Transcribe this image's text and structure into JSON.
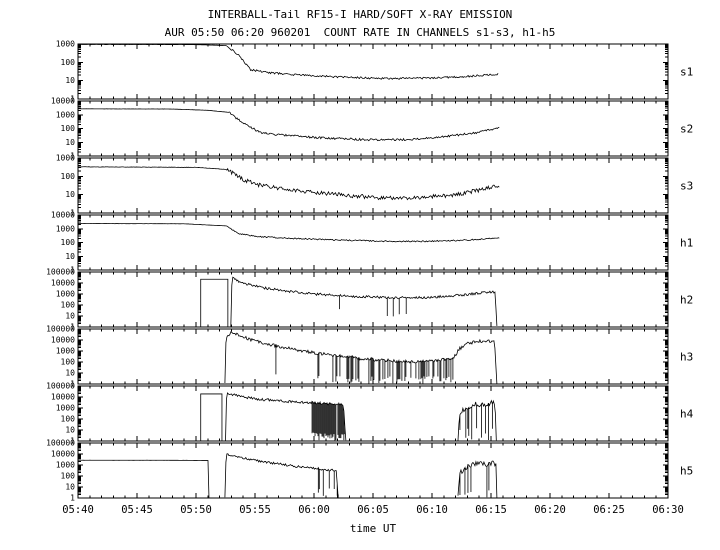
{
  "colors": {
    "trace": "#000000",
    "frame": "#000000",
    "background": "#ffffff"
  },
  "chart_data": {
    "type": "line",
    "title": "INTERBALL-Tail RF15-I HARD/SOFT X-RAY EMISSION",
    "subtitle": "AUR 05:50 06:20 960201  COUNT RATE IN CHANNELS s1-s3, h1-h5",
    "xlabel": "time UT",
    "y_scale": "log10",
    "grid": false,
    "x_axis": {
      "t_min": 340,
      "t_max": 390,
      "minor_step_min": 1,
      "ticks": [
        {
          "t": 340,
          "label": "05:40"
        },
        {
          "t": 345,
          "label": "05:45"
        },
        {
          "t": 350,
          "label": "05:50"
        },
        {
          "t": 355,
          "label": "05:55"
        },
        {
          "t": 360,
          "label": "06:00"
        },
        {
          "t": 365,
          "label": "06:05"
        },
        {
          "t": 370,
          "label": "06:10"
        },
        {
          "t": 375,
          "label": "06:15"
        },
        {
          "t": 380,
          "label": "06:20"
        },
        {
          "t": 385,
          "label": "06:25"
        },
        {
          "t": 390,
          "label": "06:30"
        }
      ]
    },
    "panels": [
      {
        "name": "s1",
        "log_decades": [
          0,
          3
        ],
        "y_tick_labels": [
          "1000",
          "100",
          "10",
          "1"
        ],
        "segments": [
          {
            "noise": 0.006,
            "pts": [
              [
                340,
                950
              ],
              [
                350,
                930
              ],
              [
                352.6,
                820
              ]
            ]
          },
          {
            "noise": 0.05,
            "pts": [
              [
                352.6,
                820
              ],
              [
                353.6,
                250
              ],
              [
                354.6,
                40
              ],
              [
                356,
                28
              ],
              [
                358,
                22
              ],
              [
                362,
                16
              ],
              [
                366,
                13
              ],
              [
                370,
                14
              ],
              [
                373,
                17
              ],
              [
                375.6,
                23
              ]
            ]
          }
        ]
      },
      {
        "name": "s2",
        "log_decades": [
          0,
          4
        ],
        "y_tick_labels": [
          "10000",
          "1000",
          "100",
          "10",
          "1"
        ],
        "segments": [
          {
            "noise": 0.005,
            "pts": [
              [
                340,
                2700
              ],
              [
                348,
                2600
              ],
              [
                351,
                2100
              ],
              [
                352.8,
                1500
              ]
            ]
          },
          {
            "noise": 0.08,
            "pts": [
              [
                352.8,
                1500
              ],
              [
                354,
                230
              ],
              [
                355.5,
                50
              ],
              [
                357.5,
                32
              ],
              [
                361,
                20
              ],
              [
                365,
                15
              ],
              [
                368,
                16
              ],
              [
                371,
                25
              ],
              [
                373.5,
                45
              ],
              [
                375,
                80
              ],
              [
                375.7,
                120
              ]
            ]
          }
        ]
      },
      {
        "name": "s3",
        "log_decades": [
          0,
          3
        ],
        "y_tick_labels": [
          "1000",
          "100",
          "10",
          "1"
        ],
        "segments": [
          {
            "noise": 0.01,
            "pts": [
              [
                340,
                330
              ],
              [
                350,
                310
              ],
              [
                352.6,
                240
              ]
            ]
          },
          {
            "noise": 0.11,
            "pts": [
              [
                352.6,
                240
              ],
              [
                354,
                65
              ],
              [
                355.5,
                32
              ],
              [
                358,
                18
              ],
              [
                362,
                10
              ],
              [
                366,
                6.5
              ],
              [
                369,
                7
              ],
              [
                372,
                10
              ],
              [
                374,
                18
              ],
              [
                375.7,
                30
              ]
            ]
          }
        ]
      },
      {
        "name": "h1",
        "log_decades": [
          0,
          4
        ],
        "y_tick_labels": [
          "10000",
          "1000",
          "100",
          "10",
          "1"
        ],
        "segments": [
          {
            "noise": 0.005,
            "pts": [
              [
                340,
                2400
              ],
              [
                349,
                2300
              ],
              [
                352.6,
                1600
              ]
            ]
          },
          {
            "noise": 0.045,
            "pts": [
              [
                352.6,
                1600
              ],
              [
                353.6,
                450
              ],
              [
                355,
                280
              ],
              [
                358,
                200
              ],
              [
                362,
                150
              ],
              [
                366,
                125
              ],
              [
                369,
                120
              ],
              [
                372,
                140
              ],
              [
                374.5,
                180
              ],
              [
                375.7,
                220
              ]
            ]
          }
        ]
      },
      {
        "name": "h2",
        "log_decades": [
          0,
          5
        ],
        "y_tick_labels": [
          "100000",
          "10000",
          "1000",
          "100",
          "10",
          "1"
        ],
        "segments": [
          {
            "noise": 0,
            "pts": [
              [
                350.4,
                1
              ],
              [
                350.4,
                22000
              ],
              [
                352.7,
                22000
              ],
              [
                352.7,
                1
              ]
            ]
          },
          {
            "noise": 0.11,
            "pts": [
              [
                352.95,
                1
              ],
              [
                353.05,
                32000
              ],
              [
                353.5,
                15000
              ],
              [
                354.5,
                7000
              ],
              [
                356,
                3200
              ],
              [
                358,
                1700
              ],
              [
                360,
                1000
              ],
              [
                363,
                650
              ],
              [
                366,
                480
              ],
              [
                369,
                460
              ],
              [
                371,
                600
              ],
              [
                373,
                900
              ],
              [
                374.5,
                1400
              ],
              [
                375.35,
                1600
              ],
              [
                375.5,
                1
              ]
            ],
            "spikes": [
              {
                "t0": 360.5,
                "t1": 370.5,
                "p": 0.06,
                "lmin": 0.6,
                "lmax": 1.7
              }
            ]
          }
        ]
      },
      {
        "name": "h3",
        "log_decades": [
          0,
          5
        ],
        "y_tick_labels": [
          "100000",
          "10000",
          "1000",
          "100",
          "10",
          "1"
        ],
        "segments": [
          {
            "noise": 0.14,
            "pts": [
              [
                352.45,
                1
              ],
              [
                352.55,
                20000
              ],
              [
                353.1,
                55000
              ],
              [
                353.5,
                30000
              ],
              [
                354.5,
                12000
              ],
              [
                356,
                4500
              ],
              [
                358,
                1600
              ],
              [
                360,
                700
              ],
              [
                362,
                350
              ],
              [
                364,
                200
              ],
              [
                366,
                140
              ],
              [
                368,
                110
              ],
              [
                370,
                120
              ],
              [
                371.8,
                200
              ],
              [
                372.3,
                1500
              ],
              [
                373,
                5000
              ],
              [
                374,
                7500
              ],
              [
                375.3,
                8500
              ],
              [
                375.5,
                1
              ]
            ],
            "spikes": [
              {
                "t0": 361.5,
                "t1": 372,
                "p": 0.4,
                "lmin": 0,
                "lmax": 0.7
              },
              {
                "t0": 356,
                "t1": 361.5,
                "p": 0.05,
                "lmin": 0.5,
                "lmax": 1.5
              }
            ]
          }
        ]
      },
      {
        "name": "h4",
        "log_decades": [
          0,
          5
        ],
        "y_tick_labels": [
          "100000",
          "10000",
          "1000",
          "100",
          "10",
          "1"
        ],
        "segments": [
          {
            "noise": 0,
            "pts": [
              [
                350.4,
                1
              ],
              [
                350.4,
                19000
              ],
              [
                352.2,
                19000
              ],
              [
                352.2,
                1
              ]
            ]
          },
          {
            "noise": 0.12,
            "pts": [
              [
                352.5,
                1
              ],
              [
                352.6,
                26000
              ],
              [
                353.5,
                13000
              ],
              [
                355,
                7000
              ],
              [
                356.5,
                5000
              ],
              [
                358,
                3800
              ],
              [
                359.5,
                3200
              ],
              [
                361,
                2400
              ],
              [
                362.5,
                1900
              ],
              [
                362.7,
                1
              ]
            ],
            "spikes": [
              {
                "t0": 359.8,
                "t1": 362.7,
                "p": 0.92,
                "lmin": 0,
                "lmax": 0.8
              }
            ]
          },
          {
            "noise": 0.28,
            "pts": [
              [
                372.2,
                1
              ],
              [
                372.35,
                250
              ],
              [
                372.9,
                1200
              ],
              [
                373.6,
                2200
              ],
              [
                374.3,
                1600
              ],
              [
                374.9,
                2600
              ],
              [
                375.35,
                2200
              ],
              [
                375.45,
                1
              ]
            ],
            "spikes": [
              {
                "t0": 372.35,
                "t1": 375.35,
                "p": 0.28,
                "lmin": 0,
                "lmax": 1.2
              }
            ]
          }
        ]
      },
      {
        "name": "h5",
        "log_decades": [
          0,
          5
        ],
        "y_tick_labels": [
          "100000",
          "10000",
          "1000",
          "100",
          "10",
          "1"
        ],
        "segments": [
          {
            "noise": 0.004,
            "pts": [
              [
                340,
                2700
              ],
              [
                347,
                2700
              ],
              [
                351.05,
                2600
              ],
              [
                351.1,
                1
              ]
            ]
          },
          {
            "noise": 0.1,
            "pts": [
              [
                352.45,
                1
              ],
              [
                352.55,
                9500
              ],
              [
                353.5,
                5500
              ],
              [
                355,
                2600
              ],
              [
                356.5,
                1500
              ],
              [
                358,
                900
              ],
              [
                359.5,
                550
              ],
              [
                361,
                380
              ],
              [
                361.9,
                300
              ],
              [
                362.05,
                1
              ]
            ],
            "spikes": [
              {
                "t0": 360.3,
                "t1": 362.05,
                "p": 0.5,
                "lmin": 0,
                "lmax": 1.0
              }
            ]
          },
          {
            "noise": 0.22,
            "pts": [
              [
                372.2,
                1
              ],
              [
                372.35,
                180
              ],
              [
                373,
                800
              ],
              [
                373.8,
                1400
              ],
              [
                374.6,
                1100
              ],
              [
                375.2,
                1500
              ],
              [
                375.45,
                1300
              ],
              [
                375.5,
                1
              ]
            ],
            "spikes": [
              {
                "t0": 372.35,
                "t1": 375.4,
                "p": 0.22,
                "lmin": 0,
                "lmax": 1.0
              }
            ]
          }
        ]
      }
    ]
  }
}
